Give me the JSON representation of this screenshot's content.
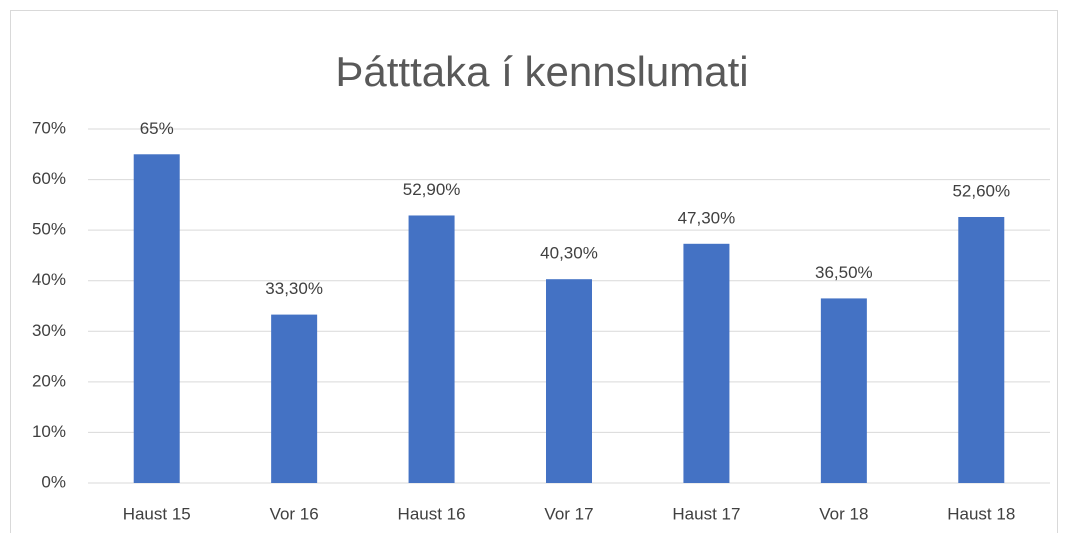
{
  "chart_data": {
    "type": "bar",
    "title": "Þátttaka í kennslumati",
    "categories": [
      "Haust 15",
      "Vor 16",
      "Haust 16",
      "Vor 17",
      "Haust 17",
      "Vor 18",
      "Haust 18"
    ],
    "values": [
      65,
      33.3,
      52.9,
      40.3,
      47.3,
      36.5,
      52.6
    ],
    "value_labels": [
      "65%",
      "33,30%",
      "52,90%",
      "40,30%",
      "47,30%",
      "36,50%",
      "52,60%"
    ],
    "color": "#4472c4",
    "ylim": [
      0,
      70
    ],
    "yticks": [
      {
        "value": 0,
        "label": "0%"
      },
      {
        "value": 10,
        "label": "10%"
      },
      {
        "value": 20,
        "label": "20%"
      },
      {
        "value": 30,
        "label": "30%"
      },
      {
        "value": 40,
        "label": "40%"
      },
      {
        "value": 50,
        "label": "50%"
      },
      {
        "value": 60,
        "label": "60%"
      },
      {
        "value": 70,
        "label": "70%"
      }
    ],
    "grid": true
  }
}
